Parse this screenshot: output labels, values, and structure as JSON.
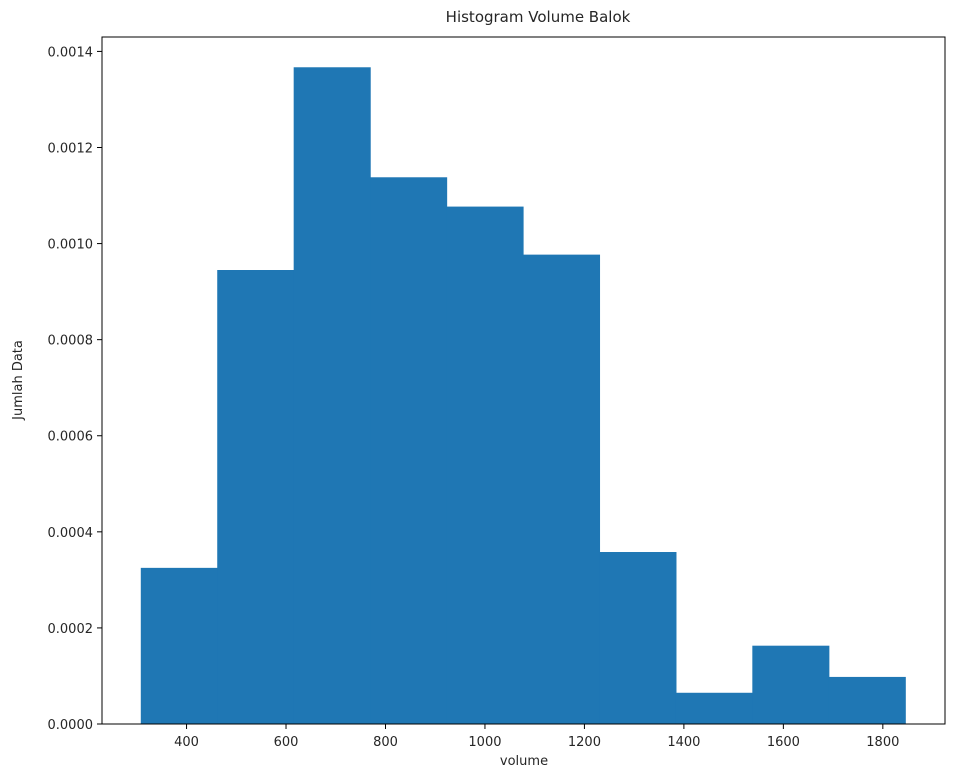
{
  "chart_data": {
    "type": "bar",
    "title": "Histogram Volume Balok",
    "xlabel": "volume",
    "ylabel": "Jumlah Data",
    "bar_color": "#1f77b4",
    "bin_edges": [
      308,
      461.7,
      615.4,
      769.1,
      922.8,
      1076.5,
      1230.2,
      1383.9,
      1537.6,
      1691.3,
      1845
    ],
    "values": [
      0.000325,
      0.000945,
      0.001367,
      0.001138,
      0.001077,
      0.000977,
      0.000358,
      6.5e-05,
      0.000163,
      9.8e-05
    ],
    "xlim": [
      230,
      1925
    ],
    "ylim": [
      0,
      0.00143
    ],
    "xticks": [
      400,
      600,
      800,
      1000,
      1200,
      1400,
      1600,
      1800
    ],
    "xtick_labels": [
      "400",
      "600",
      "800",
      "1000",
      "1200",
      "1400",
      "1600",
      "1800"
    ],
    "yticks": [
      0,
      0.0002,
      0.0004,
      0.0006,
      0.0008,
      0.001,
      0.0012,
      0.0014
    ],
    "ytick_labels": [
      "0.0000",
      "0.0002",
      "0.0004",
      "0.0006",
      "0.0008",
      "0.0010",
      "0.0012",
      "0.0014"
    ],
    "grid": false,
    "legend": "none"
  }
}
